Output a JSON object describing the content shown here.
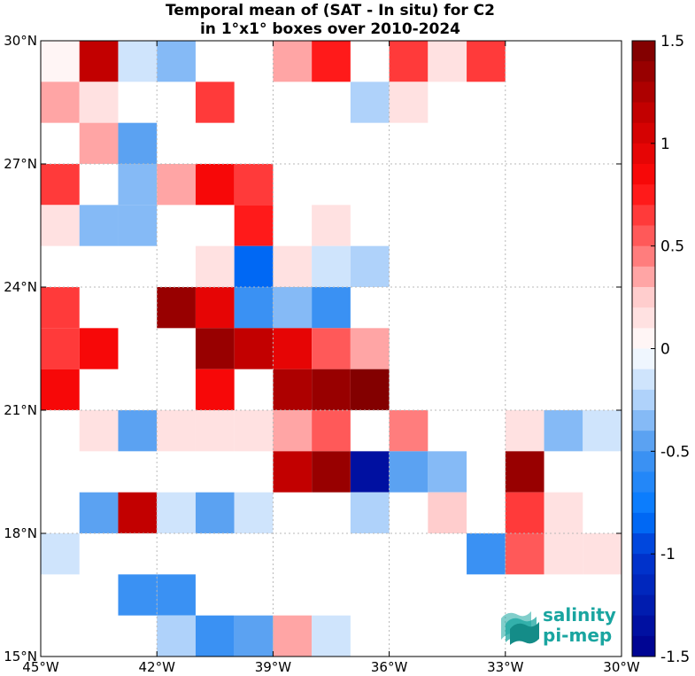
{
  "chart_data": {
    "type": "heatmap",
    "title": [
      "Temporal mean of (SAT - In situ) for C2",
      "in 1°x1° boxes over 2010-2024"
    ],
    "x_tick_labels": [
      "45°W",
      "42°W",
      "39°W",
      "36°W",
      "33°W",
      "30°W"
    ],
    "x_ticks": [
      -45,
      -42,
      -39,
      -36,
      -33,
      -30
    ],
    "y_tick_labels": [
      "15°N",
      "18°N",
      "21°N",
      "24°N",
      "27°N",
      "30°N"
    ],
    "y_ticks": [
      15,
      18,
      21,
      24,
      27,
      30
    ],
    "xlim": [
      -45,
      -30
    ],
    "ylim": [
      15,
      30
    ],
    "grid": true,
    "colorbar": {
      "ticks": [
        1.5,
        1,
        0.5,
        0,
        -0.5,
        -1,
        -1.5
      ],
      "tick_labels": [
        "1.5",
        "1",
        "0.5",
        "0",
        "-0.5",
        "-1",
        "-1.5"
      ],
      "range": [
        -1.5,
        1.5
      ],
      "levels": 30,
      "colormap": "blue-white-red"
    },
    "cells": [
      {
        "lon": -44.5,
        "lat": 29.5,
        "value": 0
      },
      {
        "lon": -43.5,
        "lat": 29.5,
        "value": 1.15
      },
      {
        "lon": -42.5,
        "lat": 29.5,
        "value": -0.15
      },
      {
        "lon": -41.5,
        "lat": 29.5,
        "value": -0.4
      },
      {
        "lon": -38.5,
        "lat": 29.5,
        "value": 0.3
      },
      {
        "lon": -37.5,
        "lat": 29.5,
        "value": 0.75
      },
      {
        "lon": -35.5,
        "lat": 29.5,
        "value": 0.6
      },
      {
        "lon": -34.5,
        "lat": 29.5,
        "value": 0.15
      },
      {
        "lon": -33.5,
        "lat": 29.5,
        "value": 0.6
      },
      {
        "lon": -44.5,
        "lat": 28.5,
        "value": 0.35
      },
      {
        "lon": -43.5,
        "lat": 28.5,
        "value": 0.15
      },
      {
        "lon": -40.5,
        "lat": 28.5,
        "value": 0.65
      },
      {
        "lon": -36.5,
        "lat": 28.5,
        "value": -0.25
      },
      {
        "lon": -35.5,
        "lat": 28.5,
        "value": 0.15
      },
      {
        "lon": -43.5,
        "lat": 27.5,
        "value": 0.3
      },
      {
        "lon": -42.5,
        "lat": 27.5,
        "value": -0.5
      },
      {
        "lon": -44.5,
        "lat": 26.5,
        "value": 0.65
      },
      {
        "lon": -42.5,
        "lat": 26.5,
        "value": -0.3
      },
      {
        "lon": -41.5,
        "lat": 26.5,
        "value": 0.4
      },
      {
        "lon": -40.5,
        "lat": 26.5,
        "value": 0.9
      },
      {
        "lon": -39.5,
        "lat": 26.5,
        "value": 0.65
      },
      {
        "lon": -44.5,
        "lat": 25.5,
        "value": 0.15
      },
      {
        "lon": -43.5,
        "lat": 25.5,
        "value": -0.4
      },
      {
        "lon": -42.5,
        "lat": 25.5,
        "value": -0.3
      },
      {
        "lon": -39.5,
        "lat": 25.5,
        "value": 0.75
      },
      {
        "lon": -37.5,
        "lat": 25.5,
        "value": 0.15
      },
      {
        "lon": -40.5,
        "lat": 24.5,
        "value": 0.15
      },
      {
        "lon": -39.5,
        "lat": 24.5,
        "value": -0.8
      },
      {
        "lon": -38.5,
        "lat": 24.5,
        "value": 0.15
      },
      {
        "lon": -37.5,
        "lat": 24.5,
        "value": -0.15
      },
      {
        "lon": -36.5,
        "lat": 24.5,
        "value": -0.25
      },
      {
        "lon": -44.5,
        "lat": 23.5,
        "value": 0.65
      },
      {
        "lon": -41.5,
        "lat": 23.5,
        "value": 1.4
      },
      {
        "lon": -40.5,
        "lat": 23.5,
        "value": 0.95
      },
      {
        "lon": -39.5,
        "lat": 23.5,
        "value": -0.55
      },
      {
        "lon": -38.5,
        "lat": 23.5,
        "value": -0.3
      },
      {
        "lon": -37.5,
        "lat": 23.5,
        "value": -0.55
      },
      {
        "lon": -44.5,
        "lat": 22.5,
        "value": 0.65
      },
      {
        "lon": -43.5,
        "lat": 22.5,
        "value": 0.9
      },
      {
        "lon": -40.5,
        "lat": 22.5,
        "value": 1.4
      },
      {
        "lon": -39.5,
        "lat": 22.5,
        "value": 1.1
      },
      {
        "lon": -38.5,
        "lat": 22.5,
        "value": 0.95
      },
      {
        "lon": -37.5,
        "lat": 22.5,
        "value": 0.55
      },
      {
        "lon": -36.5,
        "lat": 22.5,
        "value": 0.4
      },
      {
        "lon": -44.5,
        "lat": 21.5,
        "value": 0.9
      },
      {
        "lon": -40.5,
        "lat": 21.5,
        "value": 0.9
      },
      {
        "lon": -38.5,
        "lat": 21.5,
        "value": 1.3
      },
      {
        "lon": -37.5,
        "lat": 21.5,
        "value": 1.35
      },
      {
        "lon": -36.5,
        "lat": 21.5,
        "value": 1.45
      },
      {
        "lon": -43.5,
        "lat": 20.5,
        "value": 0.15
      },
      {
        "lon": -42.5,
        "lat": 20.5,
        "value": -0.5
      },
      {
        "lon": -41.5,
        "lat": 20.5,
        "value": 0.15
      },
      {
        "lon": -40.5,
        "lat": 20.5,
        "value": 0.15
      },
      {
        "lon": -39.5,
        "lat": 20.5,
        "value": 0.15
      },
      {
        "lon": -38.5,
        "lat": 20.5,
        "value": 0.3
      },
      {
        "lon": -37.5,
        "lat": 20.5,
        "value": 0.55
      },
      {
        "lon": -35.5,
        "lat": 20.5,
        "value": 0.45
      },
      {
        "lon": -32.5,
        "lat": 20.5,
        "value": 0.15
      },
      {
        "lon": -31.5,
        "lat": 20.5,
        "value": -0.3
      },
      {
        "lon": -30.5,
        "lat": 20.5,
        "value": -0.15
      },
      {
        "lon": -38.5,
        "lat": 19.5,
        "value": 1.15
      },
      {
        "lon": -37.5,
        "lat": 19.5,
        "value": 1.4
      },
      {
        "lon": -36.5,
        "lat": 19.5,
        "value": -1.3
      },
      {
        "lon": -35.5,
        "lat": 19.5,
        "value": -0.45
      },
      {
        "lon": -34.5,
        "lat": 19.5,
        "value": -0.3
      },
      {
        "lon": -32.5,
        "lat": 19.5,
        "value": 1.4
      },
      {
        "lon": -43.5,
        "lat": 18.5,
        "value": -0.45
      },
      {
        "lon": -42.5,
        "lat": 18.5,
        "value": 1.1
      },
      {
        "lon": -41.5,
        "lat": 18.5,
        "value": -0.15
      },
      {
        "lon": -40.5,
        "lat": 18.5,
        "value": -0.45
      },
      {
        "lon": -39.5,
        "lat": 18.5,
        "value": -0.15
      },
      {
        "lon": -36.5,
        "lat": 18.5,
        "value": -0.25
      },
      {
        "lon": -34.5,
        "lat": 18.5,
        "value": 0.25
      },
      {
        "lon": -32.5,
        "lat": 18.5,
        "value": 0.65
      },
      {
        "lon": -31.5,
        "lat": 18.5,
        "value": 0.15
      },
      {
        "lon": -44.5,
        "lat": 17.5,
        "value": -0.15
      },
      {
        "lon": -33.5,
        "lat": 17.5,
        "value": -0.55
      },
      {
        "lon": -32.5,
        "lat": 17.5,
        "value": 0.55
      },
      {
        "lon": -31.5,
        "lat": 17.5,
        "value": 0.15
      },
      {
        "lon": -30.5,
        "lat": 17.5,
        "value": 0.15
      },
      {
        "lon": -42.5,
        "lat": 16.5,
        "value": -0.55
      },
      {
        "lon": -41.5,
        "lat": 16.5,
        "value": -0.55
      },
      {
        "lon": -41.5,
        "lat": 15.5,
        "value": -0.25
      },
      {
        "lon": -40.5,
        "lat": 15.5,
        "value": -0.55
      },
      {
        "lon": -39.5,
        "lat": 15.5,
        "value": -0.45
      },
      {
        "lon": -38.5,
        "lat": 15.5,
        "value": 0.4
      },
      {
        "lon": -37.5,
        "lat": 15.5,
        "value": -0.15
      }
    ]
  },
  "logo": {
    "line1": "salinity",
    "line2": "pi-mep",
    "icon": "wave-layers-icon",
    "color": "#1aa5a0"
  }
}
